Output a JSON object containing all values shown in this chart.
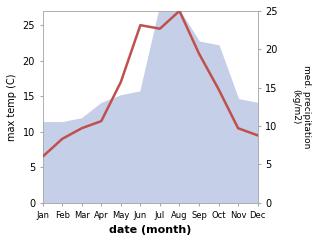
{
  "months": [
    "Jan",
    "Feb",
    "Mar",
    "Apr",
    "May",
    "Jun",
    "Jul",
    "Aug",
    "Sep",
    "Oct",
    "Nov",
    "Dec"
  ],
  "month_positions": [
    1,
    2,
    3,
    4,
    5,
    6,
    7,
    8,
    9,
    10,
    11,
    12
  ],
  "temperature": [
    6.5,
    9.0,
    10.5,
    11.5,
    17.0,
    25.0,
    24.5,
    27.0,
    21.0,
    16.0,
    10.5,
    9.5
  ],
  "precipitation": [
    10.5,
    10.5,
    11.0,
    13.0,
    14.0,
    14.5,
    25.5,
    25.0,
    21.0,
    20.5,
    13.5,
    13.0
  ],
  "temp_color": "#c0504d",
  "precip_fill_color": "#c5d0e8",
  "ylim_left": [
    0,
    27
  ],
  "ylim_right": [
    0,
    25
  ],
  "yticks_left": [
    0,
    5,
    10,
    15,
    20,
    25
  ],
  "yticks_right": [
    0,
    5,
    10,
    15,
    20,
    25
  ],
  "xlabel": "date (month)",
  "ylabel_left": "max temp (C)",
  "ylabel_right": "med. precipitation\n(kg/m2)",
  "background_color": "#ffffff",
  "line_width": 1.8,
  "figsize": [
    3.18,
    2.42
  ],
  "dpi": 100
}
